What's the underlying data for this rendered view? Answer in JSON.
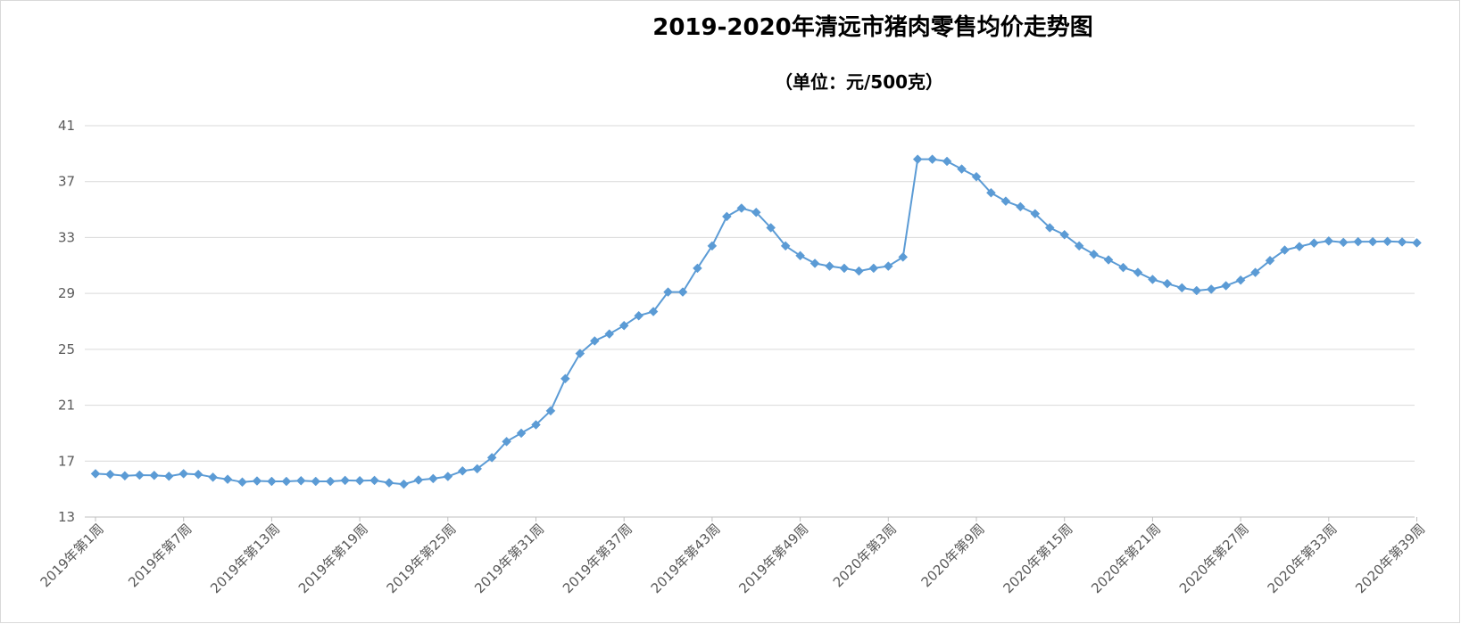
{
  "chart_data": {
    "type": "line",
    "title": "2019-2020年清远市猪肉零售均价走势图",
    "subtitle": "（单位：元/500克）",
    "xlabel": "",
    "ylabel": "",
    "ylim": [
      13,
      41
    ],
    "yticks": [
      13,
      17,
      21,
      25,
      29,
      33,
      37,
      41
    ],
    "grid": true,
    "legend": "none",
    "colors": {
      "line": "#5b9bd5",
      "grid": "#d9d9d9",
      "axis": "#bfbfbf"
    },
    "x_tick_labels": [
      "2019年第1周",
      "2019年第7周",
      "2019年第13周",
      "2019年第19周",
      "2019年第25周",
      "2019年第31周",
      "2019年第37周",
      "2019年第43周",
      "2019年第49周",
      "2020年第3周",
      "2020年第9周",
      "2020年第15周",
      "2020年第21周",
      "2020年第27周",
      "2020年第33周",
      "2020年第39周"
    ],
    "x_tick_every": 6,
    "series": [
      {
        "values": [
          16.1,
          16.05,
          15.95,
          16.0,
          15.98,
          15.92,
          16.1,
          16.05,
          15.85,
          15.7,
          15.5,
          15.58,
          15.55,
          15.55,
          15.6,
          15.55,
          15.55,
          15.62,
          15.6,
          15.62,
          15.45,
          15.35,
          15.65,
          15.75,
          15.9,
          16.3,
          16.45,
          17.25,
          18.4,
          19.0,
          19.6,
          20.6,
          22.9,
          24.7,
          25.6,
          26.1,
          26.7,
          27.4,
          27.7,
          29.1,
          29.1,
          30.8,
          32.4,
          34.5,
          35.1,
          34.8,
          33.7,
          32.4,
          31.7,
          31.15,
          30.95,
          30.8,
          30.6,
          30.8,
          30.95,
          31.6,
          38.6,
          38.6,
          38.45,
          37.9,
          37.35,
          36.2,
          35.6,
          35.2,
          34.7,
          33.7,
          33.2,
          32.4,
          31.8,
          31.4,
          30.85,
          30.5,
          30.0,
          29.7,
          29.4,
          29.2,
          29.3,
          29.55,
          29.95,
          30.5,
          31.35,
          32.1,
          32.35,
          32.6,
          32.75,
          32.65,
          32.7,
          32.7,
          32.72,
          32.68,
          32.62
        ]
      }
    ]
  }
}
